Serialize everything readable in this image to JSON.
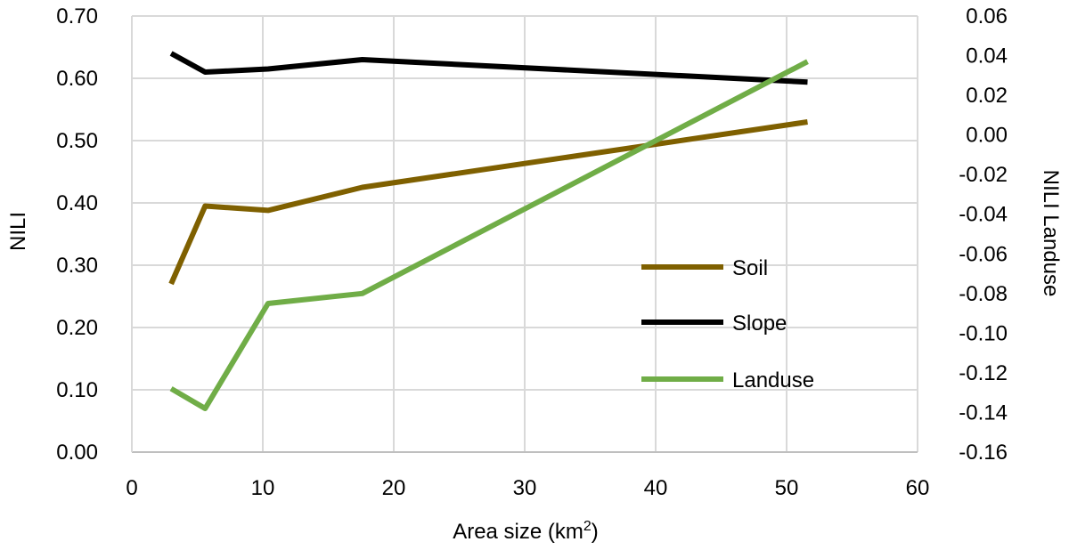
{
  "chart_data": {
    "type": "line",
    "title": "",
    "xlabel": "Area size (km",
    "xlabel_superscript": "2",
    "xlabel_suffix": ")",
    "ylabel": "NILI",
    "y2label": "NILI Landuse",
    "xlim": [
      0,
      60
    ],
    "ylim": [
      0,
      0.7
    ],
    "y2lim": [
      -0.16,
      0.06
    ],
    "x_ticks": [
      "0",
      "10",
      "20",
      "30",
      "40",
      "50",
      "60"
    ],
    "x_tick_values": [
      0,
      10,
      20,
      30,
      40,
      50,
      60
    ],
    "y_ticks": [
      "0.00",
      "0.10",
      "0.20",
      "0.30",
      "0.40",
      "0.50",
      "0.60",
      "0.70"
    ],
    "y_tick_values": [
      0,
      0.1,
      0.2,
      0.3,
      0.4,
      0.5,
      0.6,
      0.7
    ],
    "y2_ticks": [
      "-0.16",
      "-0.14",
      "-0.12",
      "-0.10",
      "-0.08",
      "-0.06",
      "-0.04",
      "-0.02",
      "0.00",
      "0.02",
      "0.04",
      "0.06"
    ],
    "y2_tick_values": [
      -0.16,
      -0.14,
      -0.12,
      -0.1,
      -0.08,
      -0.06,
      -0.04,
      -0.02,
      0,
      0.02,
      0.04,
      0.06
    ],
    "grid": true,
    "legend_position": "center-right",
    "series": [
      {
        "name": "Soil",
        "axis": "left",
        "color": "#7f6000",
        "x": [
          3,
          5.6,
          10.4,
          17.6,
          51.6
        ],
        "y": [
          0.27,
          0.395,
          0.388,
          0.425,
          0.53
        ]
      },
      {
        "name": "Slope",
        "axis": "left",
        "color": "#000000",
        "x": [
          3,
          5.6,
          10.4,
          17.6,
          51.6
        ],
        "y": [
          0.64,
          0.61,
          0.615,
          0.63,
          0.594
        ]
      },
      {
        "name": "Landuse",
        "axis": "right",
        "color": "#70ad47",
        "x": [
          3,
          5.6,
          10.4,
          17.6,
          51.6
        ],
        "y": [
          -0.128,
          -0.138,
          -0.085,
          -0.08,
          0.037
        ]
      }
    ]
  }
}
